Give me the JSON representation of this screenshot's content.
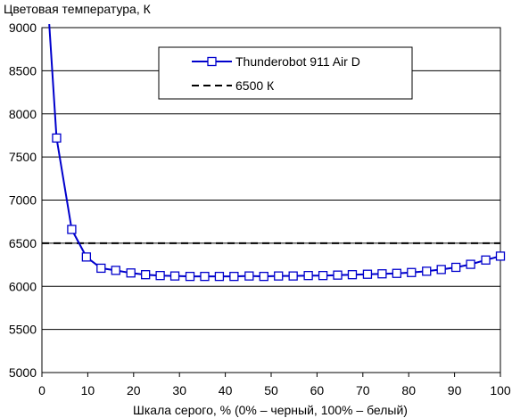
{
  "chart_data": {
    "type": "line",
    "ylabel": "Цветовая температура, К",
    "xlabel": "Шкала серого, % (0% – черный, 100% – белый)",
    "xlim": [
      0,
      100
    ],
    "ylim": [
      5000,
      9000
    ],
    "xticks": [
      0,
      10,
      20,
      30,
      40,
      50,
      60,
      70,
      80,
      90,
      100
    ],
    "yticks": [
      5000,
      5500,
      6000,
      6500,
      7000,
      7500,
      8000,
      8500,
      9000
    ],
    "grid": "horizontal",
    "legend_position": "top-center",
    "series": [
      {
        "name": "Thunderobot 911 Air D",
        "color": "#0000cc",
        "marker": "square",
        "line_start": [
          1.6,
          9040
        ],
        "x": [
          3.2,
          6.5,
          9.7,
          12.9,
          16.1,
          19.4,
          22.6,
          25.8,
          29.0,
          32.3,
          35.5,
          38.7,
          41.9,
          45.2,
          48.4,
          51.6,
          54.8,
          58.1,
          61.3,
          64.5,
          67.7,
          71.0,
          74.2,
          77.4,
          80.6,
          83.9,
          87.1,
          90.3,
          93.5,
          96.8,
          100.0
        ],
        "y": [
          7720,
          6660,
          6340,
          6210,
          6185,
          6155,
          6135,
          6125,
          6120,
          6115,
          6115,
          6115,
          6115,
          6120,
          6115,
          6120,
          6120,
          6125,
          6125,
          6130,
          6135,
          6140,
          6145,
          6150,
          6160,
          6175,
          6195,
          6220,
          6255,
          6305,
          6350
        ]
      },
      {
        "name": "6500 К",
        "color": "#000000",
        "style": "dashed",
        "x": [
          0,
          100
        ],
        "y": [
          6500,
          6500
        ]
      }
    ]
  }
}
